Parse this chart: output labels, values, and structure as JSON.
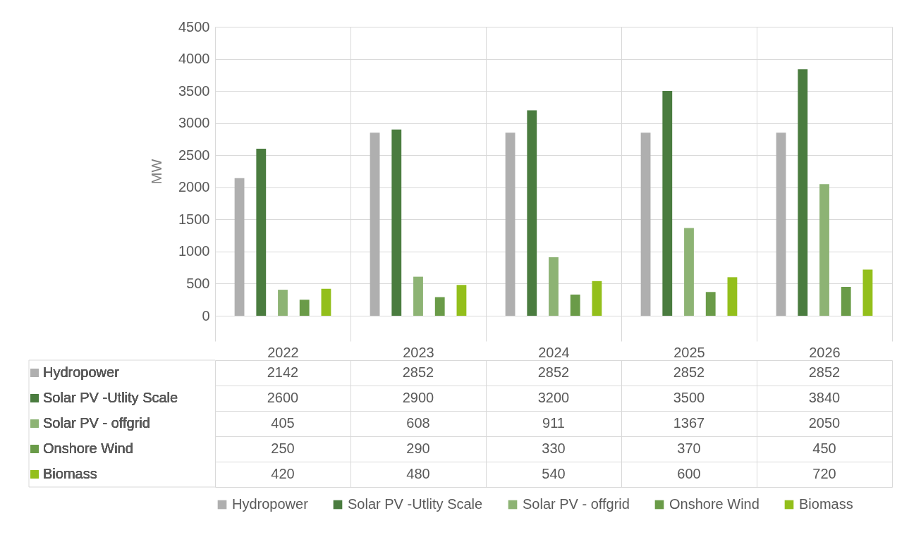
{
  "chart_data": {
    "type": "bar",
    "ylabel": "MW",
    "categories": [
      "2022",
      "2023",
      "2024",
      "2025",
      "2026"
    ],
    "series": [
      {
        "name": "Hydropower",
        "color": "#afafaf",
        "values": [
          2142,
          2852,
          2852,
          2852,
          2852
        ]
      },
      {
        "name": "Solar PV -Utlity Scale",
        "color": "#4a7c3f",
        "values": [
          2600,
          2900,
          3200,
          3500,
          3840
        ]
      },
      {
        "name": "Solar PV - offgrid",
        "color": "#8db374",
        "values": [
          405,
          608,
          911,
          1367,
          2050
        ]
      },
      {
        "name": "Onshore Wind",
        "color": "#6a9b48",
        "values": [
          250,
          290,
          330,
          370,
          450
        ]
      },
      {
        "name": "Biomass",
        "color": "#93bf1b",
        "values": [
          420,
          480,
          540,
          600,
          720
        ]
      }
    ],
    "ylim": [
      0,
      4500
    ],
    "yticks": [
      0,
      500,
      1000,
      1500,
      2000,
      2500,
      3000,
      3500,
      4000,
      4500
    ],
    "grid": "y",
    "legend": "bottom",
    "data_labels": true
  }
}
